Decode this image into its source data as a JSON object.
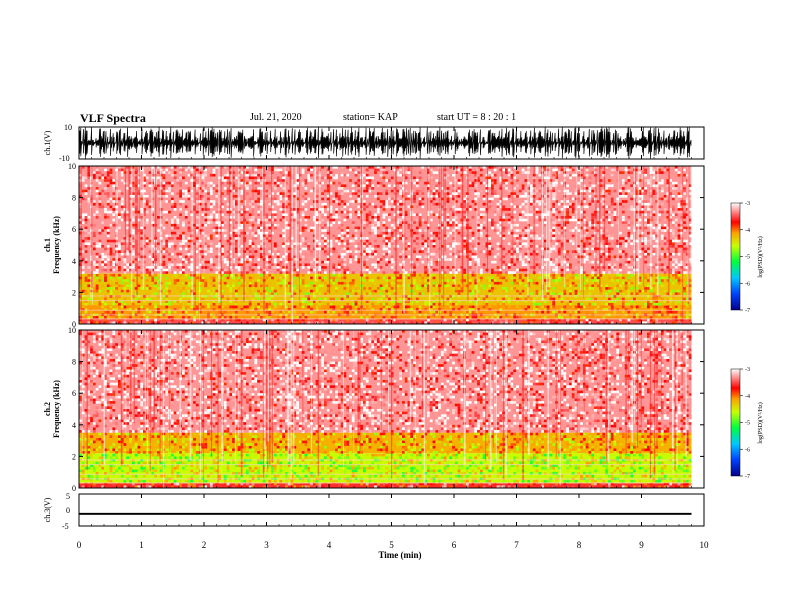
{
  "header": {
    "title": "VLF Spectra",
    "date": "Jul. 21, 2020",
    "station": "station= KAP",
    "start": "start UT =  8 : 20 : 1"
  },
  "chart_data": [
    {
      "type": "line",
      "name": "ch1-waveform",
      "ylabel": "ch.1(V)",
      "ylim": [
        -10,
        10
      ],
      "y_tick_labels": [
        "10",
        "-10"
      ],
      "xlim": [
        0,
        10
      ],
      "data_extent_min": [
        0,
        9.8
      ],
      "amplitude_range_V": [
        -10,
        10
      ]
    },
    {
      "type": "heatmap",
      "name": "ch1-spectrogram",
      "ylabel": "ch.1\nFrequency (kHz)",
      "ylim": [
        0,
        10
      ],
      "y_ticks": [
        0,
        2,
        4,
        6,
        8,
        10
      ],
      "xlim": [
        0,
        10
      ],
      "data_extent_min": [
        0,
        9.8
      ],
      "colorbar": {
        "label": "log(PSD)(V²/Hz)",
        "range": [
          -7,
          -3
        ],
        "ticks": [
          "-3",
          "-4",
          "-5",
          "-6",
          "-7"
        ]
      },
      "bands_kHz": [
        {
          "range": [
            0,
            0.3
          ],
          "level": -3.5
        },
        {
          "range": [
            0.3,
            1.2
          ],
          "level": -4.1
        },
        {
          "range": [
            1.2,
            3.2
          ],
          "level": -4.3
        },
        {
          "range": [
            3.2,
            10
          ],
          "level": -3.3
        }
      ]
    },
    {
      "type": "heatmap",
      "name": "ch2-spectrogram",
      "ylabel": "ch.2\nFrequency (kHz)",
      "ylim": [
        0,
        10
      ],
      "y_ticks": [
        0,
        2,
        4,
        6,
        8,
        10
      ],
      "xlim": [
        0,
        10
      ],
      "data_extent_min": [
        0,
        9.8
      ],
      "colorbar": {
        "label": "log(PSD)(V²/Hz)",
        "range": [
          -7,
          -3
        ],
        "ticks": [
          "-3",
          "-4",
          "-5",
          "-6",
          "-7"
        ]
      },
      "bands_kHz": [
        {
          "range": [
            0,
            0.3
          ],
          "level": -3.6
        },
        {
          "range": [
            0.3,
            2.2
          ],
          "level": -4.6
        },
        {
          "range": [
            2.2,
            3.5
          ],
          "level": -4.2
        },
        {
          "range": [
            3.5,
            10
          ],
          "level": -3.3
        }
      ]
    },
    {
      "type": "line",
      "name": "ch3-waveform",
      "ylabel": "ch.3(V)",
      "ylim": [
        -5,
        5
      ],
      "y_tick_labels": [
        "5",
        "0",
        "-5"
      ],
      "xlim": [
        0,
        10
      ],
      "xlabel": "Time (min)",
      "x_ticks": [
        0,
        1,
        2,
        3,
        4,
        5,
        6,
        7,
        8,
        9,
        10
      ],
      "data_extent_min": [
        0,
        9.8
      ],
      "signal_range_V": [
        -1.5,
        -0.9
      ]
    }
  ]
}
